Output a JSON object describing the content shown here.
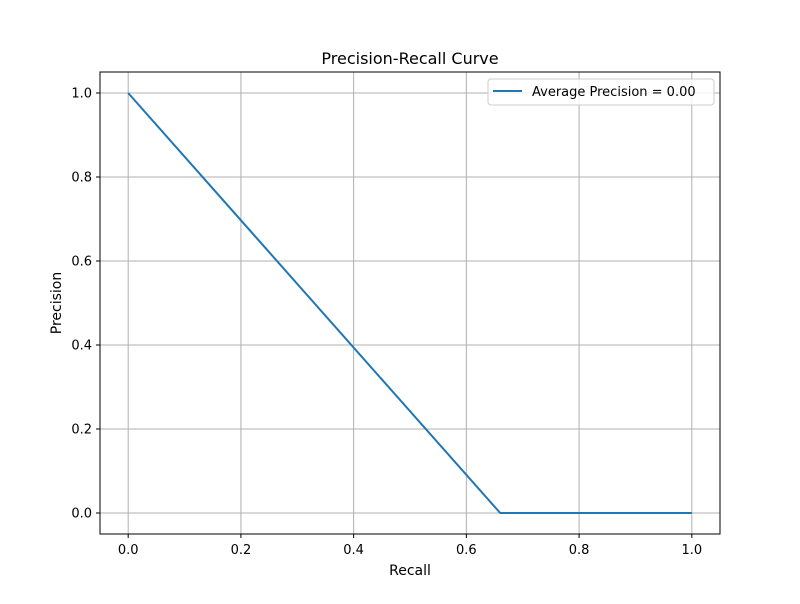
{
  "chart_data": {
    "type": "line",
    "title": "Precision-Recall Curve",
    "xlabel": "Recall",
    "ylabel": "Precision",
    "xlim": [
      -0.05,
      1.05
    ],
    "ylim": [
      -0.05,
      1.05
    ],
    "x_ticks": [
      0.0,
      0.2,
      0.4,
      0.6,
      0.8,
      1.0
    ],
    "y_ticks": [
      0.0,
      0.2,
      0.4,
      0.6,
      0.8,
      1.0
    ],
    "x_tick_labels": [
      "0.0",
      "0.2",
      "0.4",
      "0.6",
      "0.8",
      "1.0"
    ],
    "y_tick_labels": [
      "0.0",
      "0.2",
      "0.4",
      "0.6",
      "0.8",
      "1.0"
    ],
    "grid": true,
    "legend_position": "top-right",
    "series": [
      {
        "name": "Average Precision = 0.00",
        "color": "#1f77b4",
        "x": [
          0.0,
          0.66,
          1.0
        ],
        "y": [
          1.0,
          0.0,
          0.0
        ]
      }
    ]
  }
}
